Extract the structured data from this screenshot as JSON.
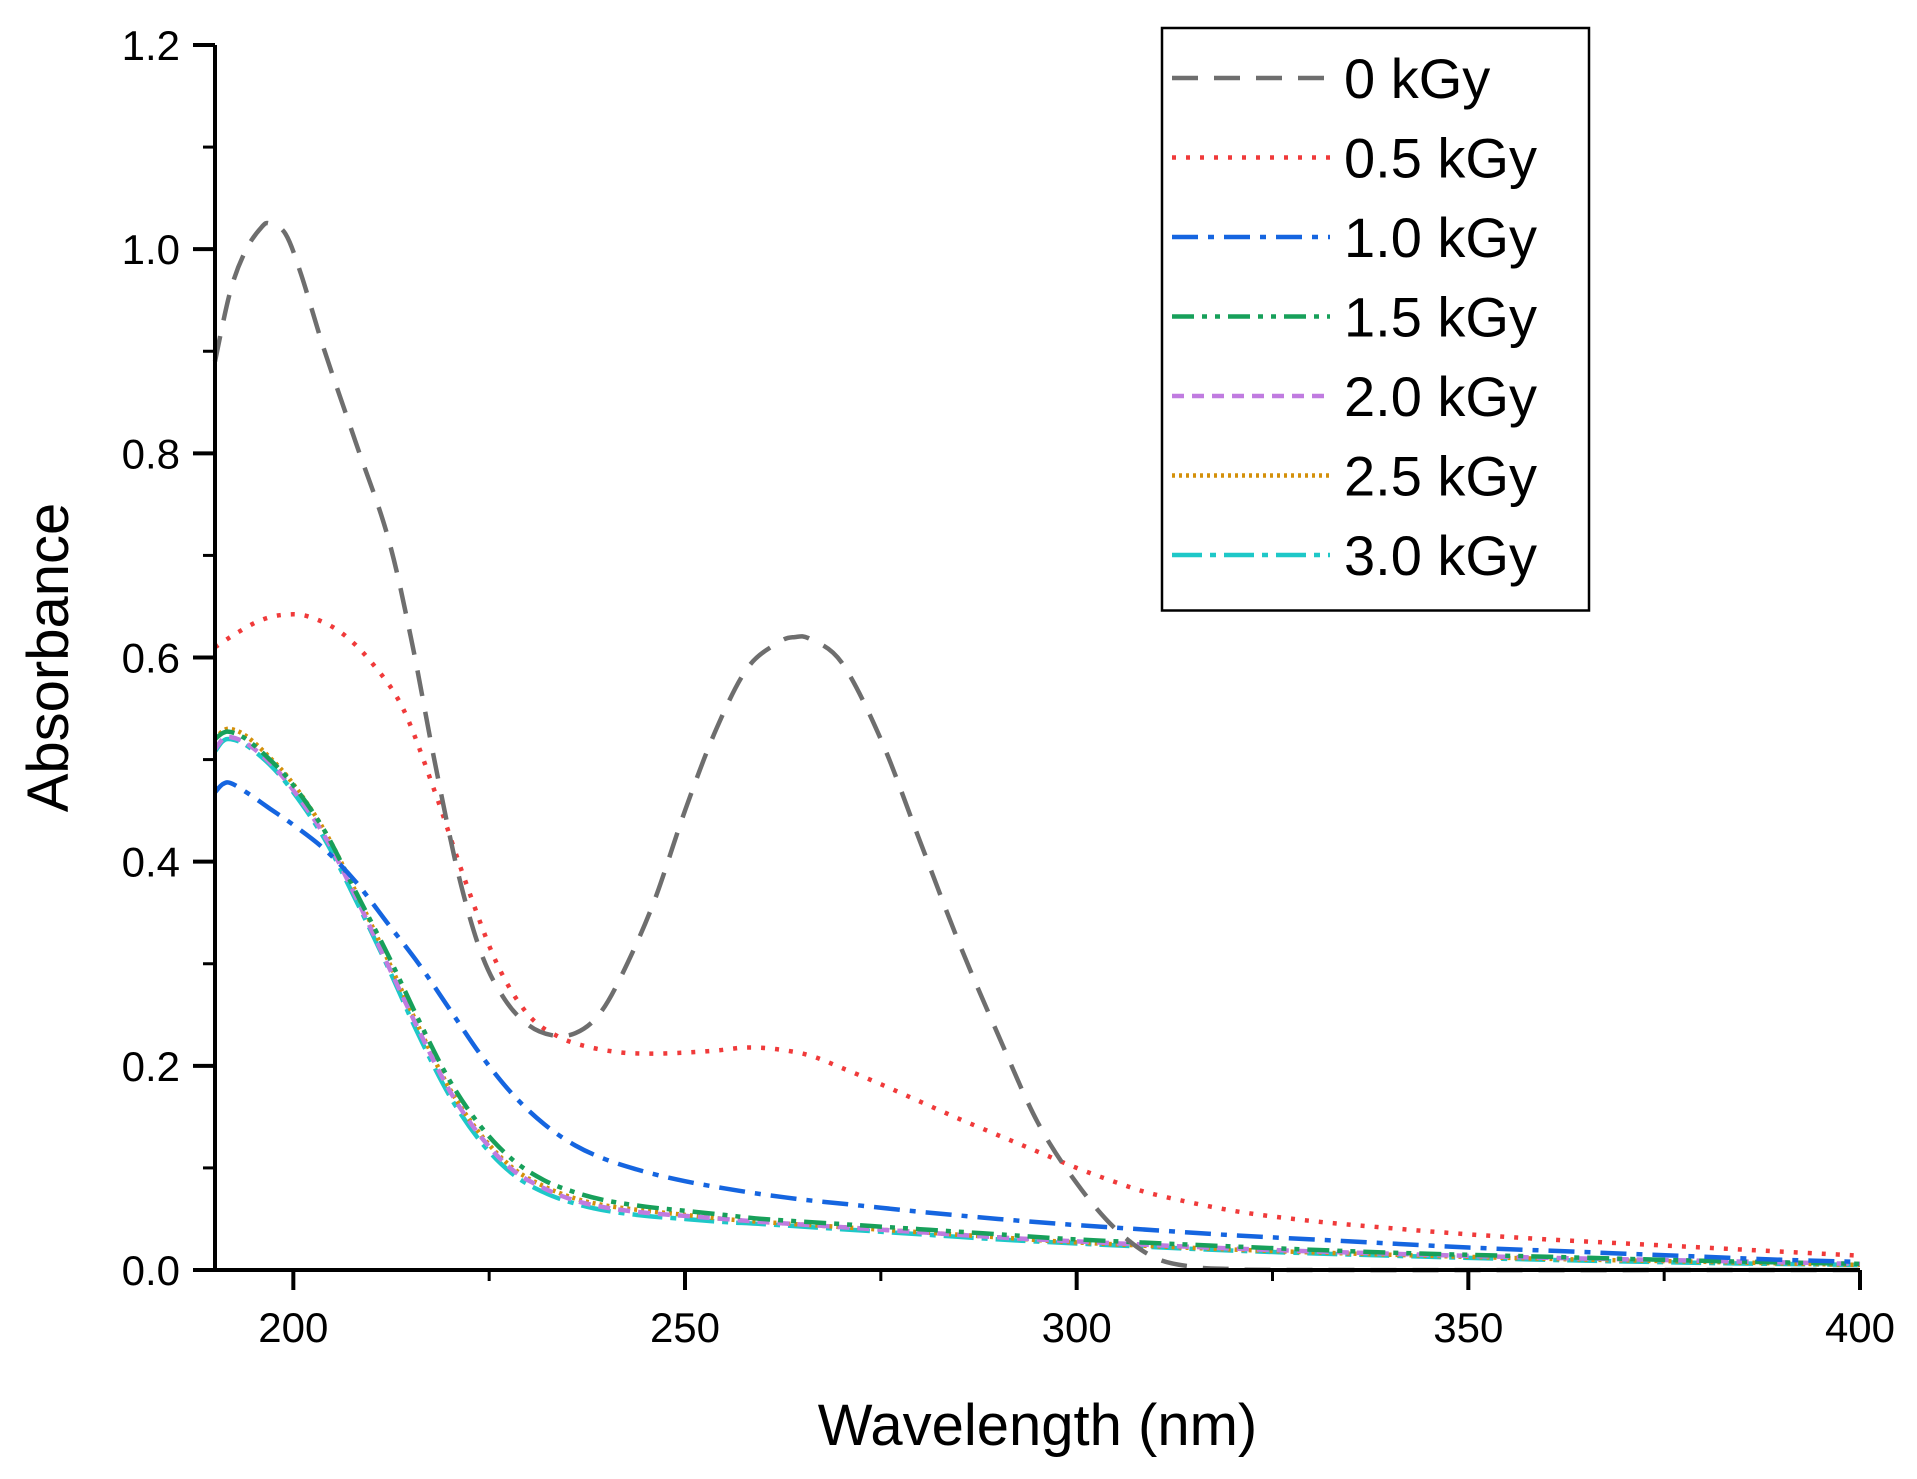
{
  "chart_data": {
    "type": "line",
    "title": "",
    "xlabel": "Wavelength (nm)",
    "ylabel": "Absorbance",
    "xlim": [
      190,
      400
    ],
    "ylim": [
      0,
      1.2
    ],
    "x_ticks": [
      {
        "value": 200,
        "label": "200"
      },
      {
        "value": 250,
        "label": "250"
      },
      {
        "value": 300,
        "label": "300"
      },
      {
        "value": 350,
        "label": "350"
      },
      {
        "value": 400,
        "label": "400"
      }
    ],
    "y_ticks": [
      {
        "value": 0.0,
        "label": "0.0"
      },
      {
        "value": 0.2,
        "label": "0.2"
      },
      {
        "value": 0.4,
        "label": "0.4"
      },
      {
        "value": 0.6,
        "label": "0.6"
      },
      {
        "value": 0.8,
        "label": "0.8"
      },
      {
        "value": 1.0,
        "label": "1.0"
      },
      {
        "value": 1.2,
        "label": "1.2"
      }
    ],
    "legend_position": "top-right",
    "series": [
      {
        "name": "0 kGy",
        "color": "#6e6e6e",
        "dash": "dash",
        "points": [
          [
            190,
            0.89
          ],
          [
            192,
            0.96
          ],
          [
            194,
            1.0
          ],
          [
            196,
            1.022
          ],
          [
            197,
            1.025
          ],
          [
            199,
            1.015
          ],
          [
            201,
            0.975
          ],
          [
            204,
            0.9
          ],
          [
            208,
            0.81
          ],
          [
            212,
            0.72
          ],
          [
            215,
            0.62
          ],
          [
            218,
            0.5
          ],
          [
            221,
            0.39
          ],
          [
            224,
            0.31
          ],
          [
            227,
            0.265
          ],
          [
            230,
            0.24
          ],
          [
            233,
            0.23
          ],
          [
            236,
            0.232
          ],
          [
            239,
            0.25
          ],
          [
            242,
            0.29
          ],
          [
            246,
            0.36
          ],
          [
            250,
            0.45
          ],
          [
            254,
            0.53
          ],
          [
            258,
            0.59
          ],
          [
            262,
            0.615
          ],
          [
            264,
            0.62
          ],
          [
            266,
            0.618
          ],
          [
            270,
            0.595
          ],
          [
            275,
            0.52
          ],
          [
            280,
            0.42
          ],
          [
            285,
            0.32
          ],
          [
            290,
            0.23
          ],
          [
            295,
            0.145
          ],
          [
            300,
            0.085
          ],
          [
            305,
            0.04
          ],
          [
            310,
            0.012
          ],
          [
            315,
            0.003
          ],
          [
            320,
            0.001
          ],
          [
            330,
            0.0
          ],
          [
            400,
            0.0
          ]
        ]
      },
      {
        "name": "0.5 kGy",
        "color": "#f03a3a",
        "dash": "dot",
        "points": [
          [
            190,
            0.61
          ],
          [
            193,
            0.625
          ],
          [
            196,
            0.637
          ],
          [
            199,
            0.642
          ],
          [
            202,
            0.64
          ],
          [
            206,
            0.625
          ],
          [
            210,
            0.595
          ],
          [
            214,
            0.55
          ],
          [
            218,
            0.47
          ],
          [
            222,
            0.38
          ],
          [
            226,
            0.3
          ],
          [
            230,
            0.25
          ],
          [
            234,
            0.228
          ],
          [
            238,
            0.218
          ],
          [
            242,
            0.213
          ],
          [
            246,
            0.212
          ],
          [
            250,
            0.213
          ],
          [
            254,
            0.215
          ],
          [
            258,
            0.218
          ],
          [
            262,
            0.216
          ],
          [
            266,
            0.21
          ],
          [
            270,
            0.198
          ],
          [
            275,
            0.182
          ],
          [
            280,
            0.165
          ],
          [
            285,
            0.148
          ],
          [
            290,
            0.132
          ],
          [
            295,
            0.116
          ],
          [
            300,
            0.1
          ],
          [
            305,
            0.086
          ],
          [
            310,
            0.074
          ],
          [
            320,
            0.058
          ],
          [
            330,
            0.048
          ],
          [
            340,
            0.041
          ],
          [
            350,
            0.035
          ],
          [
            360,
            0.03
          ],
          [
            370,
            0.026
          ],
          [
            380,
            0.022
          ],
          [
            390,
            0.018
          ],
          [
            400,
            0.014
          ]
        ]
      },
      {
        "name": "1.0 kGy",
        "color": "#1565e0",
        "dash": "dashdot",
        "points": [
          [
            190,
            0.468
          ],
          [
            191,
            0.476
          ],
          [
            192,
            0.477
          ],
          [
            194,
            0.468
          ],
          [
            197,
            0.452
          ],
          [
            200,
            0.436
          ],
          [
            204,
            0.412
          ],
          [
            208,
            0.38
          ],
          [
            212,
            0.34
          ],
          [
            216,
            0.3
          ],
          [
            220,
            0.255
          ],
          [
            224,
            0.21
          ],
          [
            228,
            0.172
          ],
          [
            232,
            0.143
          ],
          [
            236,
            0.122
          ],
          [
            240,
            0.108
          ],
          [
            245,
            0.096
          ],
          [
            250,
            0.087
          ],
          [
            255,
            0.08
          ],
          [
            260,
            0.074
          ],
          [
            265,
            0.069
          ],
          [
            270,
            0.065
          ],
          [
            275,
            0.061
          ],
          [
            280,
            0.057
          ],
          [
            290,
            0.05
          ],
          [
            300,
            0.044
          ],
          [
            310,
            0.039
          ],
          [
            320,
            0.034
          ],
          [
            330,
            0.03
          ],
          [
            340,
            0.026
          ],
          [
            350,
            0.022
          ],
          [
            360,
            0.019
          ],
          [
            370,
            0.016
          ],
          [
            380,
            0.013
          ],
          [
            390,
            0.01
          ],
          [
            400,
            0.008
          ]
        ]
      },
      {
        "name": "1.5 kGy",
        "color": "#17a05a",
        "dash": "dashdotdot",
        "points": [
          [
            190,
            0.52
          ],
          [
            191,
            0.526
          ],
          [
            192,
            0.527
          ],
          [
            194,
            0.52
          ],
          [
            197,
            0.5
          ],
          [
            200,
            0.475
          ],
          [
            204,
            0.43
          ],
          [
            208,
            0.37
          ],
          [
            212,
            0.31
          ],
          [
            216,
            0.245
          ],
          [
            220,
            0.185
          ],
          [
            224,
            0.14
          ],
          [
            228,
            0.108
          ],
          [
            232,
            0.088
          ],
          [
            236,
            0.076
          ],
          [
            240,
            0.068
          ],
          [
            245,
            0.062
          ],
          [
            250,
            0.058
          ],
          [
            255,
            0.054
          ],
          [
            260,
            0.05
          ],
          [
            270,
            0.045
          ],
          [
            280,
            0.04
          ],
          [
            290,
            0.035
          ],
          [
            300,
            0.03
          ],
          [
            320,
            0.023
          ],
          [
            340,
            0.017
          ],
          [
            360,
            0.013
          ],
          [
            380,
            0.009
          ],
          [
            400,
            0.006
          ]
        ]
      },
      {
        "name": "2.0 kGy",
        "color": "#c07be0",
        "dash": "shortdash",
        "points": [
          [
            190,
            0.51
          ],
          [
            191,
            0.52
          ],
          [
            192,
            0.522
          ],
          [
            194,
            0.516
          ],
          [
            197,
            0.497
          ],
          [
            200,
            0.47
          ],
          [
            204,
            0.425
          ],
          [
            208,
            0.365
          ],
          [
            212,
            0.3
          ],
          [
            216,
            0.235
          ],
          [
            220,
            0.175
          ],
          [
            224,
            0.13
          ],
          [
            228,
            0.098
          ],
          [
            232,
            0.08
          ],
          [
            236,
            0.068
          ],
          [
            240,
            0.061
          ],
          [
            245,
            0.056
          ],
          [
            250,
            0.053
          ],
          [
            255,
            0.05
          ],
          [
            260,
            0.047
          ],
          [
            270,
            0.042
          ],
          [
            280,
            0.037
          ],
          [
            290,
            0.032
          ],
          [
            300,
            0.028
          ],
          [
            320,
            0.021
          ],
          [
            340,
            0.016
          ],
          [
            360,
            0.012
          ],
          [
            380,
            0.009
          ],
          [
            400,
            0.006
          ]
        ]
      },
      {
        "name": "2.5 kGy",
        "color": "#d4900a",
        "dash": "fine",
        "points": [
          [
            190,
            0.52
          ],
          [
            191,
            0.528
          ],
          [
            192,
            0.53
          ],
          [
            194,
            0.523
          ],
          [
            197,
            0.502
          ],
          [
            200,
            0.476
          ],
          [
            204,
            0.43
          ],
          [
            208,
            0.37
          ],
          [
            212,
            0.305
          ],
          [
            216,
            0.238
          ],
          [
            220,
            0.177
          ],
          [
            224,
            0.132
          ],
          [
            228,
            0.1
          ],
          [
            232,
            0.082
          ],
          [
            236,
            0.07
          ],
          [
            240,
            0.063
          ],
          [
            245,
            0.058
          ],
          [
            250,
            0.054
          ],
          [
            255,
            0.05
          ],
          [
            260,
            0.047
          ],
          [
            270,
            0.042
          ],
          [
            280,
            0.037
          ],
          [
            290,
            0.032
          ],
          [
            300,
            0.027
          ],
          [
            320,
            0.02
          ],
          [
            340,
            0.015
          ],
          [
            360,
            0.011
          ],
          [
            380,
            0.008
          ],
          [
            400,
            0.005
          ]
        ]
      },
      {
        "name": "3.0 kGy",
        "color": "#1ec8c8",
        "dash": "longdashdot",
        "points": [
          [
            190,
            0.508
          ],
          [
            191,
            0.518
          ],
          [
            192,
            0.52
          ],
          [
            194,
            0.514
          ],
          [
            197,
            0.495
          ],
          [
            200,
            0.468
          ],
          [
            204,
            0.422
          ],
          [
            208,
            0.362
          ],
          [
            212,
            0.298
          ],
          [
            216,
            0.23
          ],
          [
            220,
            0.17
          ],
          [
            224,
            0.125
          ],
          [
            228,
            0.094
          ],
          [
            232,
            0.076
          ],
          [
            236,
            0.065
          ],
          [
            240,
            0.058
          ],
          [
            245,
            0.053
          ],
          [
            250,
            0.05
          ],
          [
            255,
            0.047
          ],
          [
            260,
            0.045
          ],
          [
            270,
            0.04
          ],
          [
            280,
            0.035
          ],
          [
            290,
            0.03
          ],
          [
            300,
            0.026
          ],
          [
            320,
            0.019
          ],
          [
            340,
            0.014
          ],
          [
            360,
            0.01
          ],
          [
            380,
            0.007
          ],
          [
            400,
            0.005
          ]
        ]
      }
    ]
  }
}
